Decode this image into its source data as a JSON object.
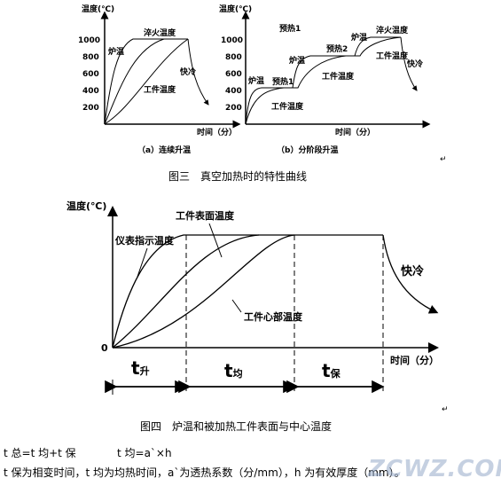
{
  "top_left": {
    "ylabel": "温度(℃)",
    "yticks": [
      "1000",
      "800",
      "600",
      "400",
      "200"
    ],
    "xlabel": "时间（分）",
    "label_furnace": "炉温",
    "label_quench": "淬火温度",
    "label_work": "工件温度",
    "label_fast_cool": "快冷",
    "subcaption": "（a）连续升温"
  },
  "top_right": {
    "ylabel": "温度(℃)",
    "yticks": [
      "1000",
      "800",
      "600",
      "400",
      "200"
    ],
    "xlabel": "时间（分）",
    "label_preheat1_top": "预热1",
    "label_furnace_left": "炉温",
    "label_preheat1": "预热1",
    "label_furnace_mid": "炉温",
    "label_preheat2": "预热2",
    "label_furnace_right": "炉温",
    "label_quench": "淬火温度",
    "label_work_left": "工件温度",
    "label_work_mid": "工件温度",
    "label_work_right": "工件温度",
    "label_fast_cool": "快冷",
    "subcaption": "（b）分阶段升温"
  },
  "caption3": "图三　真空加热时的特性曲线",
  "bottom": {
    "ylabel": "温度(℃)",
    "label_surface": "工件表面温度",
    "label_instrument": "仪表指示温度",
    "label_core": "工件心部温度",
    "label_fast_cool": "快冷",
    "origin": "0",
    "xlabel": "时间（分）",
    "t_rise": "t",
    "t_rise_sub": "升",
    "t_even": "t",
    "t_even_sub": "均",
    "t_hold": "t",
    "t_hold_sub": "保"
  },
  "caption4": "图四　炉温和被加热工件表面与中心温度",
  "formula1": "t 总=t 均+t 保",
  "formula2": "t 均=a`×h",
  "formula3": "t 保为相变时间，t 均为均热时间，a`为透热系数（分/mm），h 为有效厚度（mm）。",
  "watermark": "ZCWZ.COM"
}
